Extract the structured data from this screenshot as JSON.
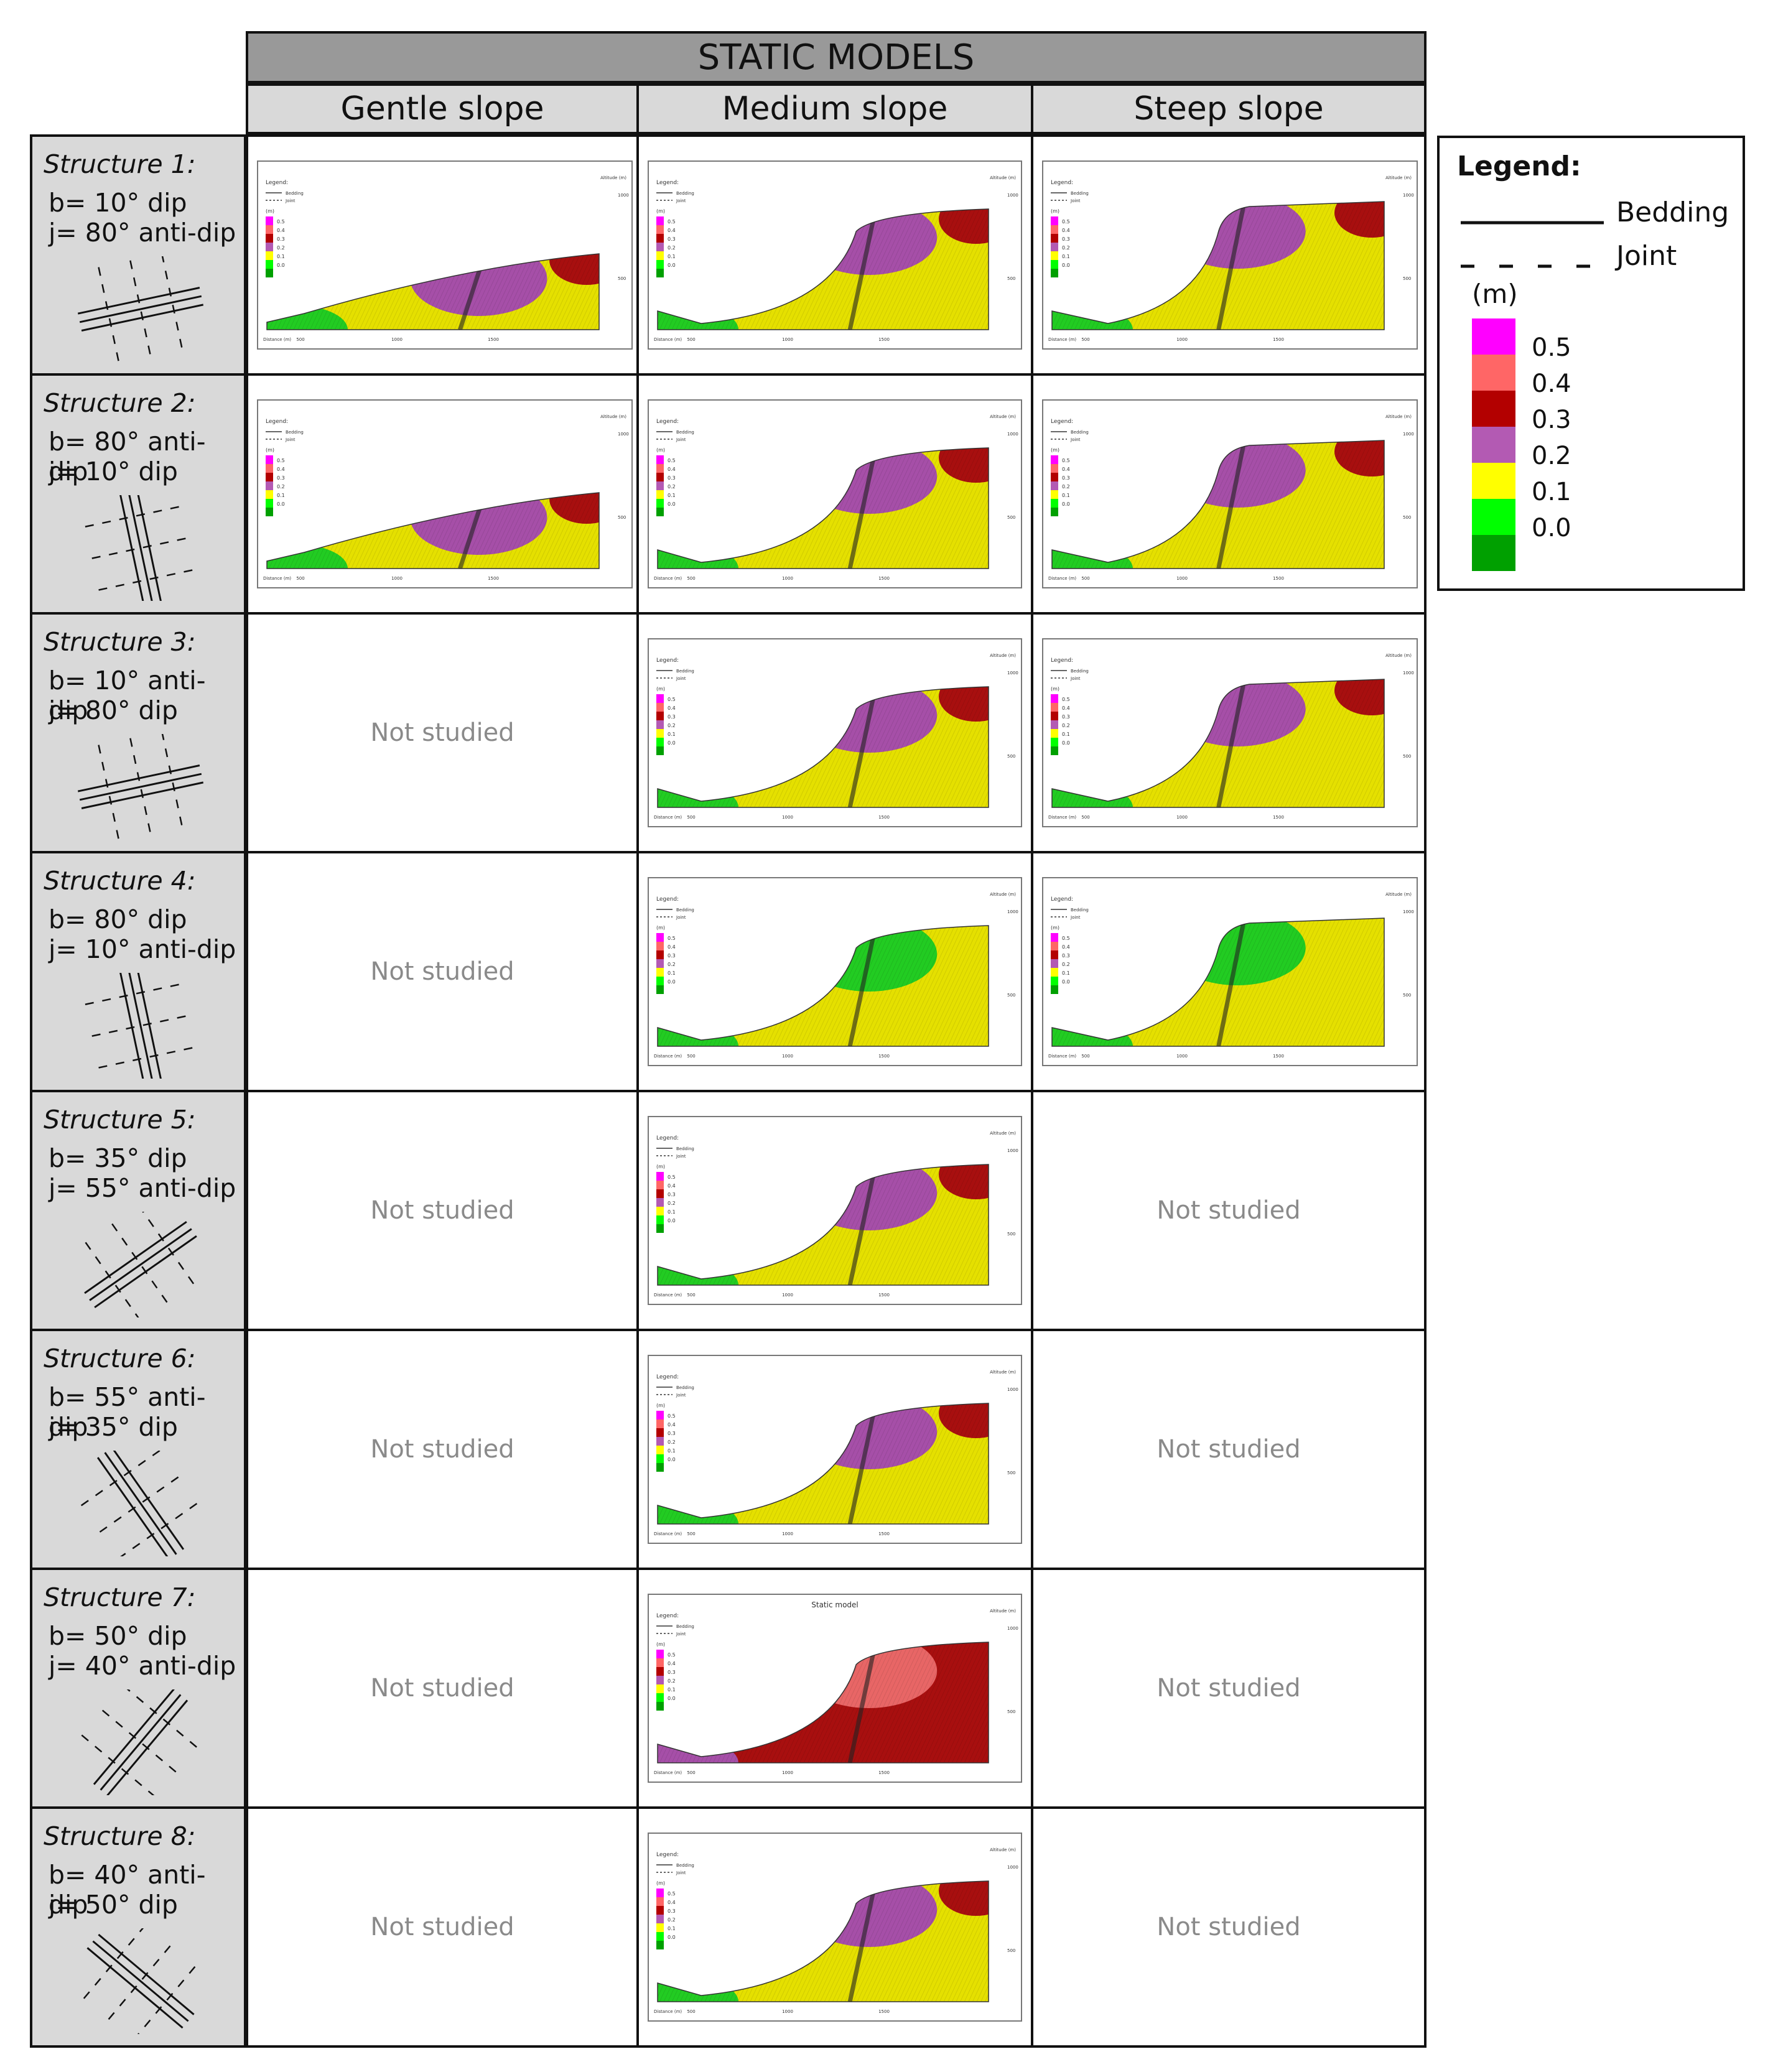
{
  "header": {
    "title": "STATIC MODELS"
  },
  "columns": [
    "Gentle slope",
    "Medium slope",
    "Steep slope"
  ],
  "not_studied_label": "Not studied",
  "structures": [
    {
      "title": "Structure 1:",
      "b": "b= 10° dip",
      "j": "j= 80° anti-dip"
    },
    {
      "title": "Structure 2:",
      "b": "b= 80° anti-dip",
      "j": "j= 10° dip"
    },
    {
      "title": "Structure 3:",
      "b": "b= 10° anti-dip",
      "j": "j= 80° dip"
    },
    {
      "title": "Structure 4:",
      "b": "b= 80° dip",
      "j": "j= 10° anti-dip"
    },
    {
      "title": "Structure 5:",
      "b": "b= 35° dip",
      "j": "j= 55° anti-dip"
    },
    {
      "title": "Structure 6:",
      "b": "b= 55° anti-dip",
      "j": "j= 35° dip"
    },
    {
      "title": "Structure 7:",
      "b": "b= 50° dip",
      "j": "j= 40° anti-dip"
    },
    {
      "title": "Structure 8:",
      "b": "b= 40° anti-dip",
      "j": "j= 50° dip"
    }
  ],
  "studied": [
    [
      true,
      true,
      true
    ],
    [
      true,
      true,
      true
    ],
    [
      false,
      true,
      true
    ],
    [
      false,
      true,
      true
    ],
    [
      false,
      true,
      false
    ],
    [
      false,
      true,
      false
    ],
    [
      false,
      true,
      false
    ],
    [
      false,
      true,
      false
    ]
  ],
  "model_panel": {
    "legend_title": "Legend:",
    "bedding": "Bedding",
    "joint": "Joint",
    "unit": "(m)",
    "altitude_label": "Altitude (m)",
    "distance_label": "Distance (m)",
    "alt_ticks": [
      "1000",
      "500"
    ],
    "x_ticks": [
      "500",
      "1000",
      "1500"
    ],
    "static_model_title": "Static model"
  },
  "legend": {
    "title": "Legend:",
    "bedding": "Bedding",
    "joint": "Joint",
    "unit": "(m)",
    "scale": [
      {
        "value": "0.5",
        "color": "#ff00ff"
      },
      {
        "value": "0.4",
        "color": "#ff6666"
      },
      {
        "value": "0.3",
        "color": "#b30000"
      },
      {
        "value": "0.2",
        "color": "#b35ab3"
      },
      {
        "value": "0.1",
        "color": "#ffff00"
      },
      {
        "value": "0.0",
        "color": "#00ff00"
      },
      {
        "value": "",
        "color": "#00a000"
      }
    ]
  },
  "colors": {
    "green": "#22cc22",
    "dark_green": "#009a00",
    "yellow": "#e5e000",
    "purple": "#a64fa8",
    "dark_red": "#a80f0f",
    "salmon": "#e86666",
    "magenta": "#ff00ff"
  }
}
